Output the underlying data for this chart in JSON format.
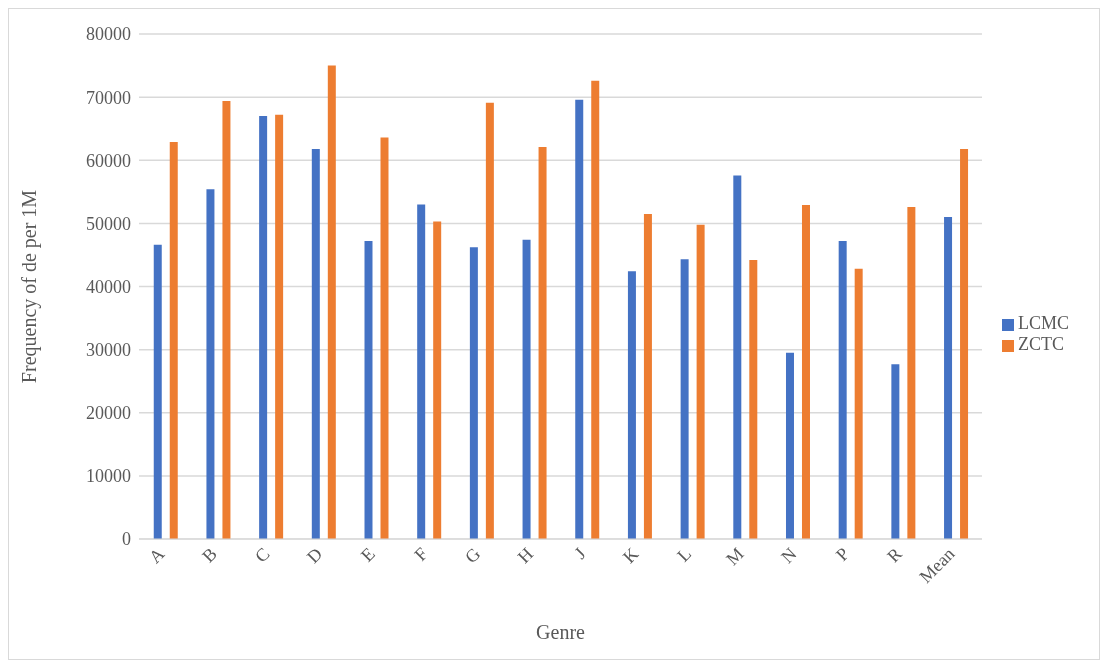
{
  "chart_data": {
    "type": "bar",
    "xlabel": "Genre",
    "ylabel": "Frequency of de per 1M",
    "categories": [
      "A",
      "B",
      "C",
      "D",
      "E",
      "F",
      "G",
      "H",
      "J",
      "K",
      "L",
      "M",
      "N",
      "P",
      "R",
      "Mean"
    ],
    "series": [
      {
        "name": "LCMC",
        "color": "#4472c4",
        "values": [
          46600,
          55400,
          67000,
          61800,
          47200,
          53000,
          46200,
          47400,
          69600,
          42400,
          44300,
          57600,
          29500,
          47200,
          27700,
          51000
        ]
      },
      {
        "name": "ZCTC",
        "color": "#ed7d31",
        "values": [
          62900,
          69400,
          67200,
          75000,
          63600,
          50300,
          69100,
          62100,
          72600,
          51500,
          49800,
          44200,
          52900,
          42800,
          52600,
          61800
        ]
      }
    ],
    "ylim": [
      0,
      80000
    ],
    "yticks": [
      0,
      10000,
      20000,
      30000,
      40000,
      50000,
      60000,
      70000,
      80000
    ],
    "grid": "y",
    "legend": "right"
  }
}
